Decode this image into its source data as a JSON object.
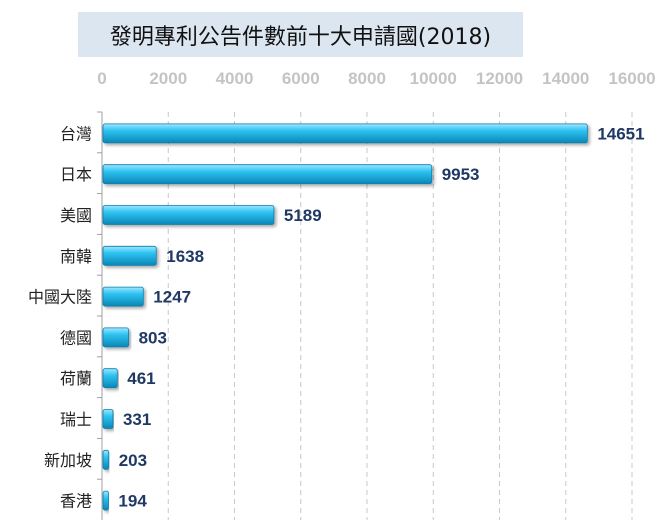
{
  "chart_data": {
    "type": "bar",
    "orientation": "horizontal",
    "title": "發明專利公告件數前十大申請國(2018)",
    "categories": [
      "台灣",
      "日本",
      "美國",
      "南韓",
      "中國大陸",
      "德國",
      "荷蘭",
      "瑞士",
      "新加坡",
      "香港"
    ],
    "values": [
      14651,
      9953,
      5189,
      1638,
      1247,
      803,
      461,
      331,
      203,
      194
    ],
    "xlim": [
      0,
      16000
    ],
    "x_ticks": [
      0,
      2000,
      4000,
      6000,
      8000,
      10000,
      12000,
      14000,
      16000
    ],
    "x_axis_position": "top",
    "grid": "vertical dashed",
    "legend": "none",
    "data_labels": true,
    "bar_color": "#29b6e8",
    "title_background": "#dbe6f0"
  }
}
